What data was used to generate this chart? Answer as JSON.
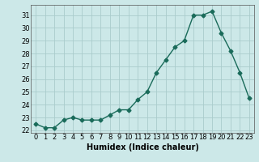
{
  "x": [
    0,
    1,
    2,
    3,
    4,
    5,
    6,
    7,
    8,
    9,
    10,
    11,
    12,
    13,
    14,
    15,
    16,
    17,
    18,
    19,
    20,
    21,
    22,
    23
  ],
  "y": [
    22.5,
    22.2,
    22.2,
    22.8,
    23.0,
    22.8,
    22.8,
    22.8,
    23.2,
    23.6,
    23.6,
    24.4,
    25.0,
    26.5,
    27.5,
    28.5,
    29.0,
    31.0,
    31.0,
    31.3,
    29.6,
    28.2,
    26.5,
    24.5
  ],
  "xlabel": "Humidex (Indice chaleur)",
  "ylim": [
    21.8,
    31.8
  ],
  "xlim": [
    -0.5,
    23.5
  ],
  "yticks": [
    22,
    23,
    24,
    25,
    26,
    27,
    28,
    29,
    30,
    31
  ],
  "xticks": [
    0,
    1,
    2,
    3,
    4,
    5,
    6,
    7,
    8,
    9,
    10,
    11,
    12,
    13,
    14,
    15,
    16,
    17,
    18,
    19,
    20,
    21,
    22,
    23
  ],
  "line_color": "#1a6b5a",
  "marker": "D",
  "marker_size": 2.5,
  "bg_color": "#cce8e8",
  "grid_color": "#aacccc",
  "label_fontsize": 7,
  "tick_fontsize": 6
}
